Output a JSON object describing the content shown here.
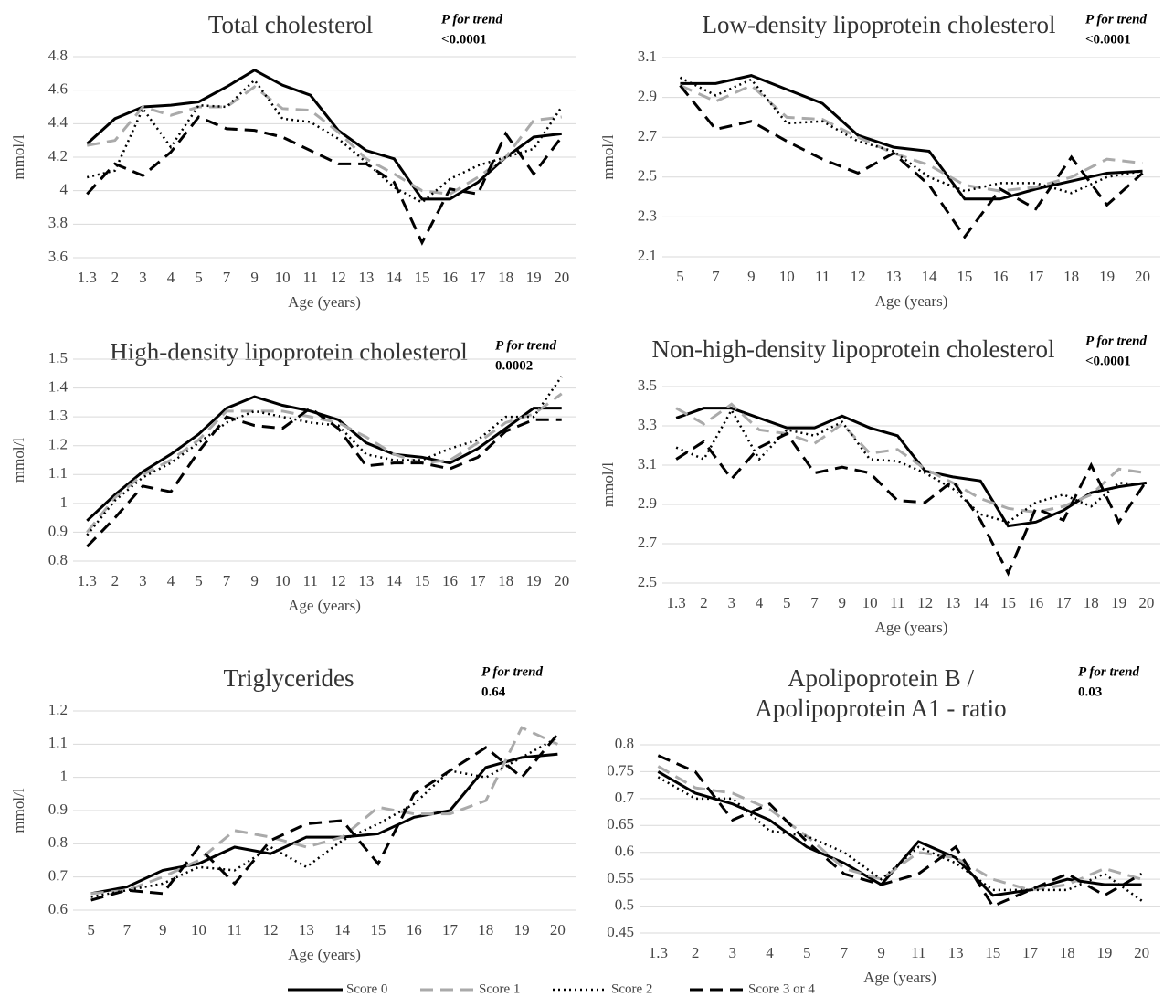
{
  "chart_data": [
    {
      "type": "line",
      "title": [
        "Total cholesterol"
      ],
      "annotation": {
        "label": "P for trend",
        "value": "<0.0001"
      },
      "ylabel": "mmol/l",
      "xlabel": "Age (years)",
      "categories": [
        "1.3",
        "2",
        "3",
        "4",
        "5",
        "7",
        "9",
        "10",
        "11",
        "12",
        "13",
        "14",
        "15",
        "16",
        "17",
        "18",
        "19",
        "20"
      ],
      "ylim": [
        3.6,
        4.8
      ],
      "yticks": [
        3.6,
        3.8,
        4,
        4.2,
        4.4,
        4.6,
        4.8
      ],
      "grid": true,
      "series": [
        {
          "values": [
            4.28,
            4.43,
            4.5,
            4.51,
            4.53,
            4.62,
            4.72,
            4.63,
            4.57,
            4.36,
            4.24,
            4.19,
            3.95,
            3.95,
            4.05,
            4.2,
            4.32,
            4.34
          ]
        },
        {
          "values": [
            4.27,
            4.3,
            4.5,
            4.45,
            4.5,
            4.5,
            4.62,
            4.49,
            4.48,
            4.35,
            4.19,
            4.1,
            4.0,
            3.98,
            4.08,
            4.2,
            4.42,
            4.44
          ]
        },
        {
          "values": [
            4.08,
            4.12,
            4.49,
            4.26,
            4.51,
            4.5,
            4.66,
            4.43,
            4.41,
            4.31,
            4.17,
            4.02,
            3.93,
            4.07,
            4.15,
            4.2,
            4.25,
            4.5
          ]
        },
        {
          "values": [
            3.98,
            4.16,
            4.09,
            4.23,
            4.44,
            4.37,
            4.36,
            4.32,
            4.24,
            4.16,
            4.16,
            4.05,
            3.69,
            4.01,
            3.98,
            4.34,
            4.1,
            4.32
          ]
        }
      ]
    },
    {
      "type": "line",
      "title": [
        "Low-density lipoprotein cholesterol"
      ],
      "annotation": {
        "label": "P for trend",
        "value": "<0.0001"
      },
      "ylabel": "mmol/l",
      "xlabel": "Age (years)",
      "categories": [
        "5",
        "7",
        "9",
        "10",
        "11",
        "12",
        "13",
        "14",
        "15",
        "16",
        "17",
        "18",
        "19",
        "20"
      ],
      "ylim": [
        2.1,
        3.1
      ],
      "yticks": [
        2.1,
        2.3,
        2.5,
        2.7,
        2.9,
        3.1
      ],
      "grid": true,
      "series": [
        {
          "values": [
            2.97,
            2.97,
            3.01,
            2.94,
            2.87,
            2.71,
            2.65,
            2.63,
            2.39,
            2.39,
            2.44,
            2.48,
            2.52,
            2.53
          ]
        },
        {
          "values": [
            2.96,
            2.88,
            2.96,
            2.8,
            2.79,
            2.7,
            2.62,
            2.56,
            2.46,
            2.43,
            2.45,
            2.5,
            2.59,
            2.57
          ]
        },
        {
          "values": [
            3.0,
            2.91,
            2.99,
            2.77,
            2.78,
            2.68,
            2.63,
            2.5,
            2.43,
            2.47,
            2.47,
            2.42,
            2.5,
            2.53
          ]
        },
        {
          "values": [
            2.96,
            2.74,
            2.78,
            2.68,
            2.59,
            2.52,
            2.62,
            2.46,
            2.2,
            2.44,
            2.34,
            2.6,
            2.36,
            2.52
          ]
        }
      ]
    },
    {
      "type": "line",
      "title": [
        "High-density lipoprotein cholesterol"
      ],
      "annotation": {
        "label": "P for trend",
        "value": "0.0002"
      },
      "ylabel": "mmol/l",
      "xlabel": "Age (years)",
      "categories": [
        "1.3",
        "2",
        "3",
        "4",
        "5",
        "7",
        "9",
        "10",
        "11",
        "12",
        "13",
        "14",
        "15",
        "16",
        "17",
        "18",
        "19",
        "20"
      ],
      "ylim": [
        0.8,
        1.5
      ],
      "yticks": [
        0.8,
        0.9,
        1,
        1.1,
        1.2,
        1.3,
        1.4,
        1.5
      ],
      "grid": true,
      "series": [
        {
          "values": [
            0.94,
            1.03,
            1.11,
            1.17,
            1.24,
            1.33,
            1.37,
            1.34,
            1.32,
            1.29,
            1.21,
            1.17,
            1.16,
            1.14,
            1.19,
            1.26,
            1.33,
            1.33
          ]
        },
        {
          "values": [
            0.9,
            1.02,
            1.1,
            1.15,
            1.22,
            1.32,
            1.32,
            1.32,
            1.3,
            1.28,
            1.23,
            1.17,
            1.14,
            1.15,
            1.21,
            1.28,
            1.31,
            1.38
          ]
        },
        {
          "values": [
            0.89,
            1.01,
            1.09,
            1.14,
            1.21,
            1.28,
            1.32,
            1.3,
            1.28,
            1.27,
            1.17,
            1.15,
            1.15,
            1.19,
            1.22,
            1.3,
            1.3,
            1.44
          ]
        },
        {
          "values": [
            0.85,
            0.95,
            1.06,
            1.04,
            1.18,
            1.3,
            1.27,
            1.26,
            1.33,
            1.26,
            1.13,
            1.14,
            1.14,
            1.12,
            1.16,
            1.25,
            1.29,
            1.29
          ]
        }
      ]
    },
    {
      "type": "line",
      "title": [
        "Non-high-density lipoprotein cholesterol"
      ],
      "annotation": {
        "label": "P for trend",
        "value": "<0.0001"
      },
      "ylabel": "mmol/l",
      "xlabel": "Age (years)",
      "categories": [
        "1.3",
        "2",
        "3",
        "4",
        "5",
        "7",
        "9",
        "10",
        "11",
        "12",
        "13",
        "14",
        "15",
        "16",
        "17",
        "18",
        "19",
        "20"
      ],
      "ylim": [
        2.5,
        3.5
      ],
      "yticks": [
        2.5,
        2.7,
        2.9,
        3.1,
        3.3,
        3.5
      ],
      "grid": true,
      "series": [
        {
          "values": [
            3.34,
            3.39,
            3.39,
            3.34,
            3.29,
            3.29,
            3.35,
            3.29,
            3.25,
            3.07,
            3.04,
            3.02,
            2.79,
            2.81,
            2.87,
            2.96,
            2.99,
            3.01
          ]
        },
        {
          "values": [
            3.39,
            3.31,
            3.41,
            3.28,
            3.26,
            3.21,
            3.31,
            3.16,
            3.18,
            3.08,
            3.01,
            2.93,
            2.88,
            2.86,
            2.89,
            2.95,
            3.08,
            3.06
          ]
        },
        {
          "values": [
            3.19,
            3.13,
            3.38,
            3.13,
            3.28,
            3.25,
            3.32,
            3.13,
            3.12,
            3.06,
            2.98,
            2.85,
            2.81,
            2.91,
            2.95,
            2.89,
            3.01,
            3.0
          ]
        },
        {
          "values": [
            3.13,
            3.22,
            3.03,
            3.19,
            3.26,
            3.06,
            3.09,
            3.06,
            2.92,
            2.91,
            3.02,
            2.82,
            2.55,
            2.88,
            2.82,
            3.1,
            2.81,
            3.02
          ]
        }
      ]
    },
    {
      "type": "line",
      "title": [
        "Triglycerides"
      ],
      "annotation": {
        "label": "P for trend",
        "value": "0.64"
      },
      "ylabel": "mmol/l",
      "xlabel": "Age (years)",
      "categories": [
        "5",
        "7",
        "9",
        "10",
        "11",
        "12",
        "13",
        "14",
        "15",
        "16",
        "17",
        "18",
        "19",
        "20"
      ],
      "ylim": [
        0.6,
        1.2
      ],
      "yticks": [
        0.6,
        0.7,
        0.8,
        0.9,
        1,
        1.1,
        1.2
      ],
      "grid": true,
      "series": [
        {
          "values": [
            0.65,
            0.67,
            0.72,
            0.74,
            0.79,
            0.77,
            0.82,
            0.82,
            0.83,
            0.88,
            0.9,
            1.03,
            1.06,
            1.07
          ]
        },
        {
          "values": [
            0.65,
            0.66,
            0.7,
            0.75,
            0.84,
            0.82,
            0.79,
            0.82,
            0.91,
            0.89,
            0.89,
            0.93,
            1.15,
            1.1
          ]
        },
        {
          "values": [
            0.64,
            0.66,
            0.68,
            0.73,
            0.72,
            0.79,
            0.73,
            0.81,
            0.86,
            0.92,
            1.02,
            1.0,
            1.06,
            1.12
          ]
        },
        {
          "values": [
            0.63,
            0.66,
            0.65,
            0.79,
            0.68,
            0.81,
            0.86,
            0.87,
            0.74,
            0.95,
            1.02,
            1.09,
            1.0,
            1.13
          ]
        }
      ]
    },
    {
      "type": "line",
      "title": [
        "Apolipoprotein B /",
        "Apolipoprotein A1 - ratio"
      ],
      "annotation": {
        "label": "P for trend",
        "value": "0.03"
      },
      "xlabel": "Age (years)",
      "categories": [
        "1.3",
        "2",
        "3",
        "4",
        "5",
        "7",
        "9",
        "11",
        "13",
        "15",
        "17",
        "18",
        "19",
        "20"
      ],
      "ylim": [
        0.45,
        0.8
      ],
      "yticks": [
        0.45,
        0.5,
        0.55,
        0.6,
        0.65,
        0.7,
        0.75,
        0.8
      ],
      "grid": true,
      "series": [
        {
          "values": [
            0.75,
            0.71,
            0.69,
            0.66,
            0.61,
            0.58,
            0.54,
            0.62,
            0.59,
            0.52,
            0.53,
            0.55,
            0.54,
            0.54
          ]
        },
        {
          "values": [
            0.76,
            0.72,
            0.71,
            0.68,
            0.63,
            0.57,
            0.55,
            0.6,
            0.59,
            0.55,
            0.53,
            0.54,
            0.57,
            0.55
          ]
        },
        {
          "values": [
            0.74,
            0.7,
            0.7,
            0.64,
            0.63,
            0.6,
            0.55,
            0.61,
            0.58,
            0.53,
            0.53,
            0.53,
            0.56,
            0.51
          ]
        },
        {
          "values": [
            0.78,
            0.75,
            0.66,
            0.69,
            0.62,
            0.56,
            0.54,
            0.56,
            0.61,
            0.5,
            0.53,
            0.56,
            0.52,
            0.56
          ]
        }
      ]
    }
  ],
  "legend": {
    "series": [
      {
        "name": "Score 0",
        "color": "#000000",
        "style": "solid"
      },
      {
        "name": "Score 1",
        "color": "#aaaaaa",
        "style": "dashed"
      },
      {
        "name": "Score 2",
        "color": "#000000",
        "style": "dotted"
      },
      {
        "name": "Score 3 or 4",
        "color": "#000000",
        "style": "dashed"
      }
    ]
  }
}
